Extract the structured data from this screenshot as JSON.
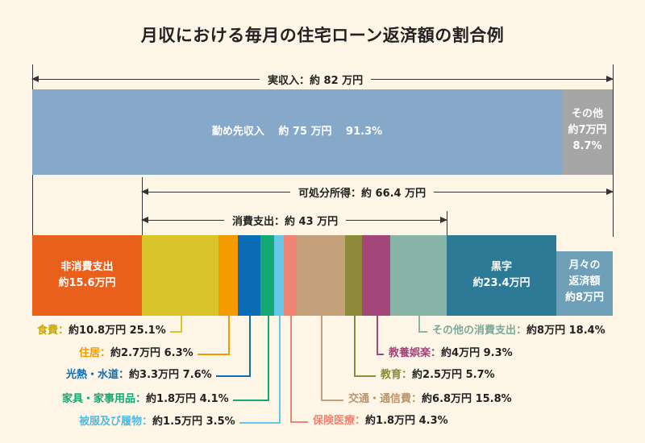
{
  "title": "月収における毎月の住宅ローン返済額の割合例",
  "income": {
    "label": "実収入：約 82 万円"
  },
  "disposable": {
    "label": "可処分所得：約 66.4 万円"
  },
  "consumption": {
    "label": "消費支出：約 43 万円"
  },
  "top_bar": {
    "salary": {
      "label": "勤め先収入　 約 75 万円　 91.3%",
      "value_man_yen": 75,
      "percent": 91.3,
      "color": "#86a8c9"
    },
    "other": {
      "line1": "その他",
      "line2": "約7万円",
      "line3": "8.7%",
      "value_man_yen": 7,
      "percent": 8.7,
      "color": "#a6a6a6"
    }
  },
  "bottom_bar": {
    "non_consumption": {
      "line1": "非消費支出",
      "line2": "約15.6万円",
      "value_man_yen": 15.6,
      "color": "#e8601c"
    },
    "surplus": {
      "line1": "黒字",
      "line2": "約23.4万円",
      "value_man_yen": 23.4,
      "color": "#2d7a96"
    },
    "loan": {
      "line1": "月々の",
      "line2": "返済額",
      "line3": "約8万円",
      "value_man_yen": 8,
      "color": "#6d9fb8"
    }
  },
  "expenses": [
    {
      "name": "食費",
      "value": "約10.8万円 25.1%",
      "value_man_yen": 10.8,
      "percent": 25.1,
      "color": "#d9c52a",
      "text_color": "#c9a800"
    },
    {
      "name": "住居",
      "value": "約2.7万円 6.3%",
      "value_man_yen": 2.7,
      "percent": 6.3,
      "color": "#f29a00",
      "text_color": "#f29a00"
    },
    {
      "name": "光熱・水道",
      "value": "約3.3万円 7.6%",
      "value_man_yen": 3.3,
      "percent": 7.6,
      "color": "#0a6db5",
      "text_color": "#0a6db5"
    },
    {
      "name": "家具・家事用品",
      "value": "約1.8万円 4.1%",
      "value_man_yen": 1.8,
      "percent": 4.1,
      "color": "#13a874",
      "text_color": "#13a874"
    },
    {
      "name": "被服及び履物",
      "value": "約1.5万円 3.5%",
      "value_man_yen": 1.5,
      "percent": 3.5,
      "color": "#66c6e6",
      "text_color": "#55b8de"
    },
    {
      "name": "保険医療",
      "value": "約1.8万円 4.3%",
      "value_man_yen": 1.8,
      "percent": 4.3,
      "color": "#f08474",
      "text_color": "#f08474"
    },
    {
      "name": "交通・通信費",
      "value": "約6.8万円 15.8%",
      "value_man_yen": 6.8,
      "percent": 15.8,
      "color": "#c4a17a",
      "text_color": "#b8956b"
    },
    {
      "name": "教育",
      "value": "約2.5万円 5.7%",
      "value_man_yen": 2.5,
      "percent": 5.7,
      "color": "#8d8a3a",
      "text_color": "#8d8a3a"
    },
    {
      "name": "教養娯楽",
      "value": "約4万円 9.3%",
      "value_man_yen": 4,
      "percent": 9.3,
      "color": "#a3467a",
      "text_color": "#a3467a"
    },
    {
      "name": "その他の消費支出",
      "value": "約8万円 18.4%",
      "value_man_yen": 8,
      "percent": 18.4,
      "color": "#87b4a6",
      "text_color": "#7aaa99"
    }
  ]
}
